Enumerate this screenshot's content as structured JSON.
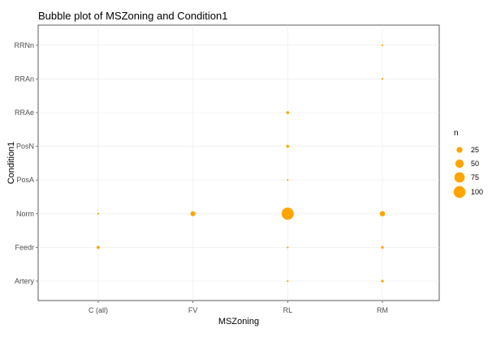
{
  "chart_data": {
    "type": "scatter",
    "title": "Bubble plot of MSZoning and Condition1",
    "xlabel": "MSZoning",
    "ylabel": "Condition1",
    "x_categories": [
      "C (all)",
      "FV",
      "RL",
      "RM"
    ],
    "y_categories": [
      "Artery",
      "Feedr",
      "Norm",
      "PosA",
      "PosN",
      "RRAe",
      "RRAn",
      "RRNn"
    ],
    "grid": true,
    "legend": {
      "title": "n",
      "position": "right",
      "sizes": [
        25,
        50,
        75,
        100
      ],
      "labels": [
        "25",
        "50",
        "75",
        "100"
      ]
    },
    "point_color": "#FFA500",
    "size_scale_max_n": 105,
    "points": [
      {
        "x": "C (all)",
        "y": "Norm",
        "n": 1
      },
      {
        "x": "C (all)",
        "y": "Feedr",
        "n": 7
      },
      {
        "x": "FV",
        "y": "Norm",
        "n": 18
      },
      {
        "x": "RL",
        "y": "Norm",
        "n": 105
      },
      {
        "x": "RL",
        "y": "Feedr",
        "n": 2
      },
      {
        "x": "RL",
        "y": "Artery",
        "n": 1
      },
      {
        "x": "RL",
        "y": "PosA",
        "n": 1
      },
      {
        "x": "RL",
        "y": "PosN",
        "n": 6
      },
      {
        "x": "RL",
        "y": "RRAe",
        "n": 6
      },
      {
        "x": "RM",
        "y": "Norm",
        "n": 20
      },
      {
        "x": "RM",
        "y": "Feedr",
        "n": 5
      },
      {
        "x": "RM",
        "y": "Artery",
        "n": 5
      },
      {
        "x": "RM",
        "y": "RRAn",
        "n": 1
      },
      {
        "x": "RM",
        "y": "RRNn",
        "n": 1
      }
    ]
  }
}
